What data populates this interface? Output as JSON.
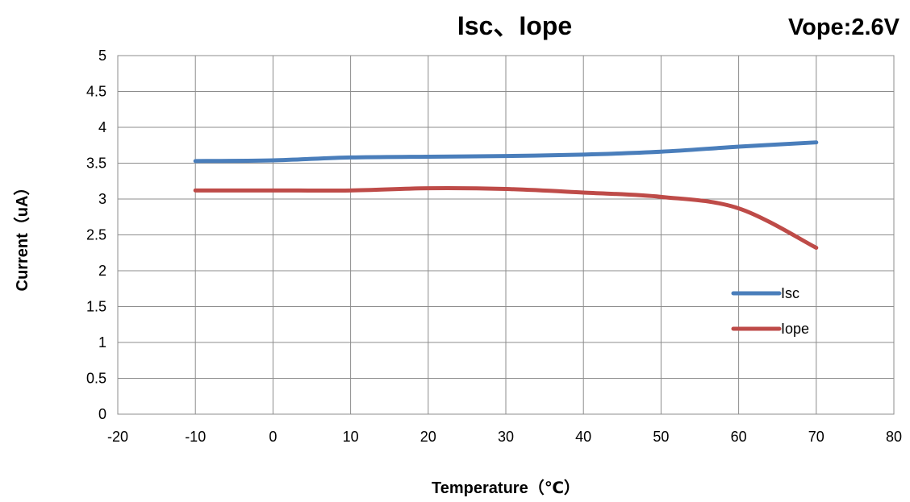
{
  "chart_data": {
    "type": "line",
    "title": "Isc、Iope",
    "subtitle": "Vope:2.6V",
    "xlabel": "Temperature（℃）",
    "ylabel": "Current（uA）",
    "xlim": [
      -20,
      80
    ],
    "ylim": [
      0,
      5
    ],
    "xticks": [
      "-20",
      "-10",
      "0",
      "10",
      "20",
      "30",
      "40",
      "50",
      "60",
      "70",
      "80"
    ],
    "yticks": [
      "0",
      "0.5",
      "1",
      "1.5",
      "2",
      "2.5",
      "3",
      "3.5",
      "4",
      "4.5",
      "5"
    ],
    "grid": true,
    "legend_position": "right",
    "series": [
      {
        "name": "Isc",
        "color": "#4a7ebb",
        "x": [
          -10,
          0,
          10,
          20,
          30,
          40,
          50,
          60,
          70
        ],
        "y": [
          3.53,
          3.54,
          3.58,
          3.59,
          3.6,
          3.62,
          3.66,
          3.73,
          3.79
        ]
      },
      {
        "name": "Iope",
        "color": "#be4b48",
        "x": [
          -10,
          0,
          10,
          20,
          30,
          40,
          50,
          60,
          70
        ],
        "y": [
          3.12,
          3.12,
          3.12,
          3.15,
          3.14,
          3.09,
          3.03,
          2.87,
          2.32
        ]
      }
    ]
  }
}
